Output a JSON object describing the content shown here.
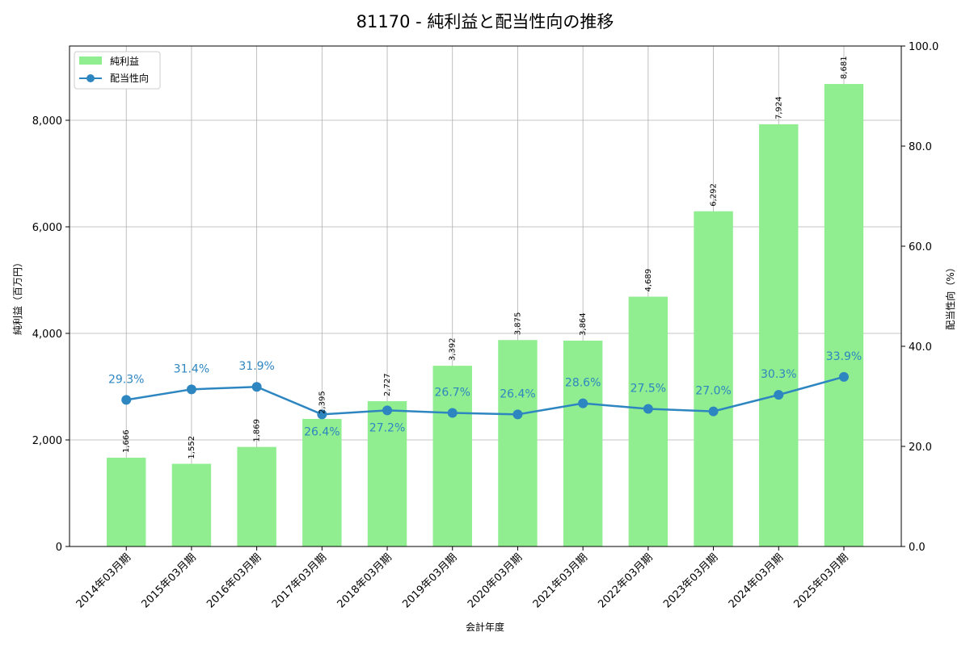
{
  "chart_data": {
    "type": "bar+line",
    "title": "81170 - 純利益と配当性向の推移",
    "xlabel": "会計年度",
    "ylabel": "純利益（百万円）",
    "y2label": "配当性向（%）",
    "categories": [
      "2014年03月期",
      "2015年03月期",
      "2016年03月期",
      "2017年03月期",
      "2018年03月期",
      "2019年03月期",
      "2020年03月期",
      "2021年03月期",
      "2022年03月期",
      "2023年03月期",
      "2024年03月期",
      "2025年03月期"
    ],
    "series": [
      {
        "name": "純利益",
        "type": "bar",
        "axis": "left",
        "color": "#90ee90",
        "values": [
          1666,
          1552,
          1869,
          2395,
          2727,
          3392,
          3875,
          3864,
          4689,
          6292,
          7924,
          8681
        ],
        "labels": [
          "1,666",
          "1,552",
          "1,869",
          "2,395",
          "2,727",
          "3,392",
          "3,875",
          "3,864",
          "4,689",
          "6,292",
          "7,924",
          "8,681"
        ]
      },
      {
        "name": "配当性向",
        "type": "line",
        "axis": "right",
        "color": "#2e86c1",
        "values": [
          29.3,
          31.4,
          31.9,
          26.4,
          27.2,
          26.7,
          26.4,
          28.6,
          27.5,
          27.0,
          30.3,
          33.9
        ],
        "labels": [
          "29.3%",
          "31.4%",
          "31.9%",
          "26.4%",
          "27.2%",
          "26.7%",
          "26.4%",
          "28.6%",
          "27.5%",
          "27.0%",
          "30.3%",
          "33.9%"
        ]
      }
    ],
    "ylim": [
      0,
      9394
    ],
    "y2lim": [
      0,
      100
    ],
    "yticks": [
      0,
      2000,
      4000,
      6000,
      8000
    ],
    "ytick_labels": [
      "0",
      "2,000",
      "4,000",
      "6,000",
      "8,000"
    ],
    "y2ticks": [
      0,
      20,
      40,
      60,
      80,
      100
    ],
    "y2tick_labels": [
      "0.0",
      "20.0",
      "40.0",
      "60.0",
      "80.0",
      "100.0"
    ],
    "grid": true,
    "legend": "top-left"
  }
}
